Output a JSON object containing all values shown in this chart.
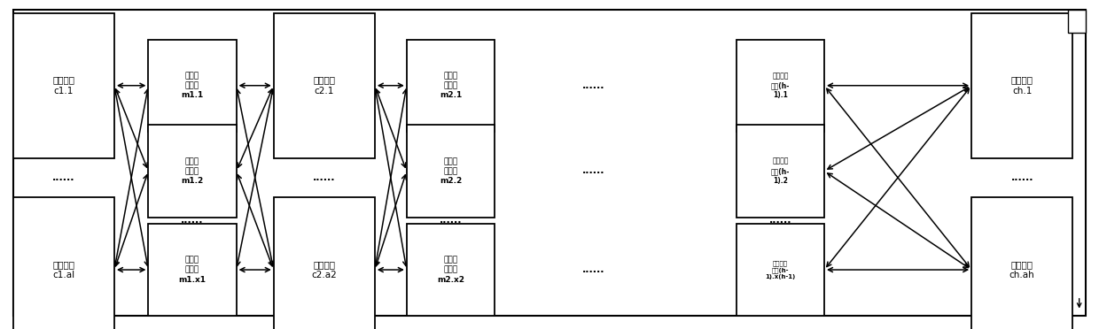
{
  "bg_color": "#ffffff",
  "fig_width": 12.4,
  "fig_height": 3.72,
  "dpi": 100,
  "cols": {
    "cc1x": 0.058,
    "m1x": 0.175,
    "cc2x": 0.295,
    "m2x": 0.41,
    "sep": 0.54,
    "mlx": 0.71,
    "ccRx": 0.93
  },
  "ytop": 0.74,
  "ymid": 0.48,
  "ybot": 0.18,
  "cw": 0.092,
  "ch": 0.44,
  "mw": 0.08,
  "mh": 0.28,
  "mlmw": 0.08,
  "compute_labels_left": [
    "计算芯片\nc1.1",
    "计算芯片\nc1.al"
  ],
  "compute_labels_c2": [
    "计算芯片\nc2.1",
    "计算芯片\nc2.a2"
  ],
  "compute_labels_right": [
    "计算芯片\nch.1",
    "计算芯片\nch.ah"
  ],
  "mem1_labels": [
    "存储器\n芯片组\nm1.1",
    "存储器\n芯片组\nm1.2",
    "存储器\n芯片组\nm1.x1"
  ],
  "mem2_labels": [
    "存储器\n芯片组\nm2.1",
    "存储器\n芯片组\nm2.2",
    "存储器\n芯片组\nm2.x2"
  ],
  "meml_labels": [
    "存储器芯\n片组(h-\n1).1",
    "存储器芯\n片组(h-\n1).2",
    "存储器芯\n片组(h-\n1).x(h-1)"
  ],
  "cjk_font": "SimHei",
  "fallback_font": "DejaVu Sans"
}
